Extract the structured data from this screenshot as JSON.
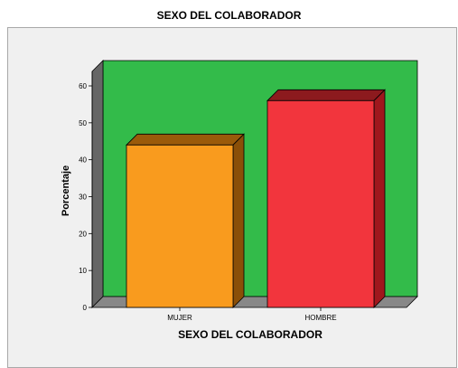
{
  "chart_data": {
    "type": "bar",
    "title": "SEXO DEL COLABORADOR",
    "xlabel": "SEXO DEL COLABORADOR",
    "ylabel": "Porcentaje",
    "categories": [
      "MUJER",
      "HOMBRE"
    ],
    "values": [
      44,
      56
    ],
    "ylim": [
      0,
      60
    ],
    "yticks": [
      0,
      10,
      20,
      30,
      40,
      50,
      60
    ],
    "colors": {
      "wall": "#33bb4a",
      "wall_side": "#666666",
      "floor": "#888888",
      "bars": [
        {
          "front": "#f99b1e",
          "top": "#9a5a0a",
          "side": "#8a4f08"
        },
        {
          "front": "#f2353d",
          "top": "#8c1a1e",
          "side": "#a0171d"
        }
      ]
    }
  }
}
